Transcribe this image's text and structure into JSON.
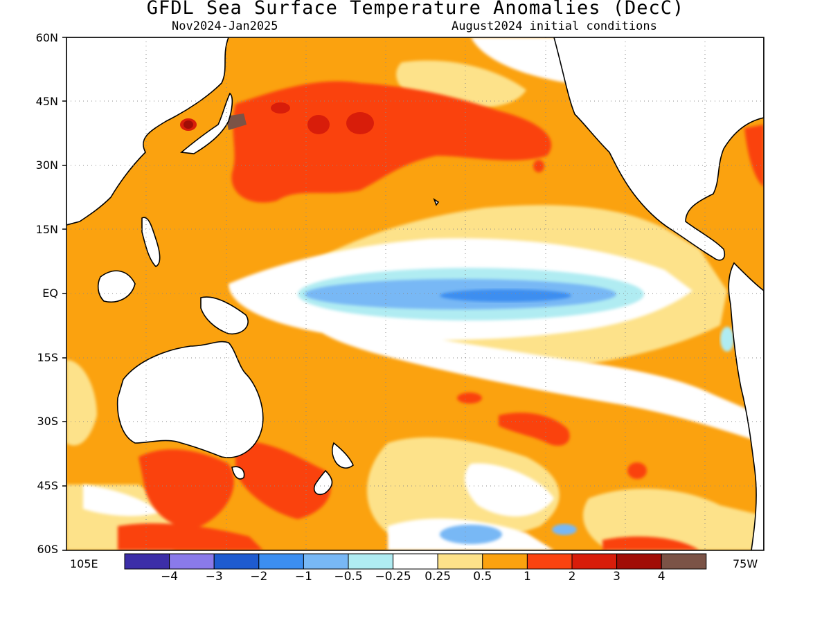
{
  "title": "GFDL Sea Surface Temperature Anomalies (DecC)",
  "subtitle_left": "Nov2024-Jan2025",
  "subtitle_right": "August2024 initial conditions",
  "lat_labels": [
    "60N",
    "45N",
    "30N",
    "15N",
    "EQ",
    "15S",
    "30S",
    "45S",
    "60S"
  ],
  "lon_labels": {
    "left": "105E",
    "right": "75W"
  },
  "colorbar": {
    "colors": [
      "#3c2ea8",
      "#8a7aea",
      "#1e5bd0",
      "#3c8ef0",
      "#78b8f5",
      "#b0ecf2",
      "#ffffff",
      "#fde28a",
      "#fba20f",
      "#fa4310",
      "#d81d0a",
      "#a10d06",
      "#7b5346"
    ],
    "labels": [
      "-4",
      "-3",
      "-2",
      "-1",
      "-0.5",
      "-0.25",
      "0.25",
      "0.5",
      "1",
      "2",
      "3",
      "4"
    ]
  },
  "legend_colors": {
    "ocean_base": "#fba20f",
    "weak_warm": "#fde28a",
    "strong_warm": "#fa4310",
    "very_strong_warm": "#d81d0a",
    "extreme_warm": "#a10d06",
    "max_warm": "#7b5346",
    "neutral": "#ffffff",
    "weak_cool": "#b0ecf2",
    "cool": "#78b8f5",
    "strong_cool": "#3c8ef0",
    "land": "#ffffff",
    "coastline": "#000000"
  }
}
